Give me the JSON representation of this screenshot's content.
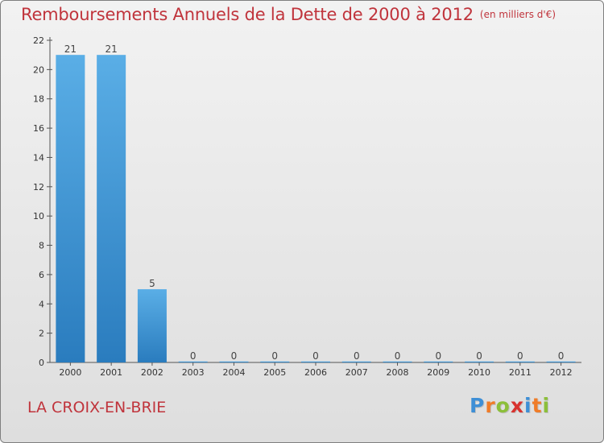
{
  "header": {
    "title": "Remboursements Annuels de la Dette de 2000 à 2012",
    "unit": "(en milliers d'€)"
  },
  "footer": {
    "commune": "LA CROIX-EN-BRIE",
    "logo_letters": [
      "P",
      "r",
      "o",
      "x",
      "i",
      "t",
      "i"
    ]
  },
  "colors": {
    "title": "#c0343c",
    "bar_top": "#5aaee6",
    "bar_bottom": "#2a7cbe",
    "logo": [
      "#3e8fd6",
      "#f07c28",
      "#8cbf3a",
      "#d8322e",
      "#3e8fd6",
      "#f07c28",
      "#8cbf3a"
    ]
  },
  "chart_data": {
    "type": "bar",
    "title": "Remboursements Annuels de la Dette de 2000 à 2012",
    "subtitle": "(en milliers d'€)",
    "categories": [
      "2000",
      "2001",
      "2002",
      "2003",
      "2004",
      "2005",
      "2006",
      "2007",
      "2008",
      "2009",
      "2010",
      "2011",
      "2012"
    ],
    "values": [
      21,
      21,
      5,
      0,
      0,
      0,
      0,
      0,
      0,
      0,
      0,
      0,
      0
    ],
    "data_labels": [
      "21",
      "21",
      "5",
      "0",
      "0",
      "0",
      "0",
      "0",
      "0",
      "0",
      "0",
      "0",
      "0"
    ],
    "ylim": [
      0,
      22
    ],
    "yticks": [
      0,
      2,
      4,
      6,
      8,
      10,
      12,
      14,
      16,
      18,
      20,
      22
    ],
    "xlabel": "",
    "ylabel": "",
    "grid": false,
    "legend": "none"
  }
}
